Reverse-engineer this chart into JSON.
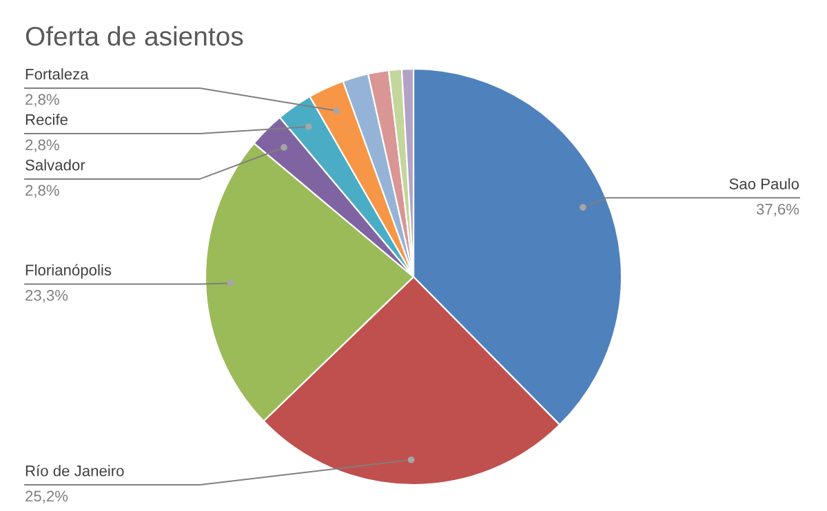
{
  "chart_data": {
    "type": "pie",
    "title": "Oferta de asientos",
    "categories": [
      "Sao Paulo",
      "Río de Janeiro",
      "Florianópolis",
      "Salvador",
      "Recife",
      "Fortaleza",
      null,
      null,
      null,
      null
    ],
    "values": [
      37.6,
      25.2,
      23.3,
      2.8,
      2.8,
      2.8,
      2.0,
      1.6,
      1.0,
      0.9
    ],
    "value_labels": [
      "37,6%",
      "25,2%",
      "23,3%",
      "2,8%",
      "2,8%",
      "2,8%",
      null,
      null,
      null,
      null
    ],
    "colors": [
      "#4f81bd",
      "#c0504d",
      "#9bbb59",
      "#8064a2",
      "#4bacc6",
      "#f79646",
      "#95b3d7",
      "#d99694",
      "#c3d69b",
      "#b3a2c7"
    ]
  }
}
